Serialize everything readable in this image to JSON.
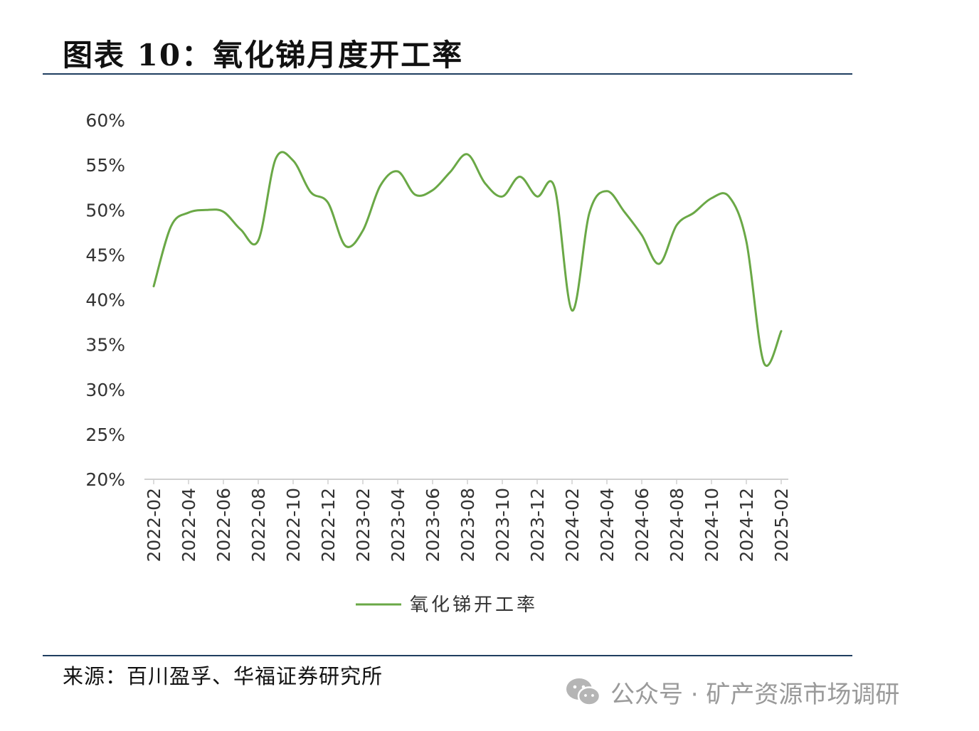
{
  "header": {
    "title": "图表 10：氧化锑月度开工率"
  },
  "footer": {
    "source": "来源：百川盈孚、华福证券研究所",
    "watermark": "公众号 · 矿产资源市场调研"
  },
  "colors": {
    "line": "#6aa846",
    "rule": "#1f3e60",
    "axis": "#d0d0d0",
    "text": "#333333"
  },
  "chart_data": {
    "type": "line",
    "title": "",
    "xlabel": "",
    "ylabel": "",
    "ylim": [
      0.2,
      0.6
    ],
    "y_ticks": [
      "20%",
      "25%",
      "30%",
      "35%",
      "40%",
      "45%",
      "50%",
      "55%",
      "60%"
    ],
    "x_tick_labels": [
      "2022-02",
      "2022-04",
      "2022-06",
      "2022-08",
      "2022-10",
      "2022-12",
      "2023-02",
      "2023-04",
      "2023-06",
      "2023-08",
      "2023-10",
      "2023-12",
      "2024-02",
      "2024-04",
      "2024-06",
      "2024-08",
      "2024-10",
      "2024-12",
      "2025-02"
    ],
    "grid": false,
    "legend_position": "bottom",
    "x": [
      "2022-02",
      "2022-03",
      "2022-04",
      "2022-05",
      "2022-06",
      "2022-07",
      "2022-08",
      "2022-09",
      "2022-10",
      "2022-11",
      "2022-12",
      "2023-01",
      "2023-02",
      "2023-03",
      "2023-04",
      "2023-05",
      "2023-06",
      "2023-07",
      "2023-08",
      "2023-09",
      "2023-10",
      "2023-11",
      "2023-12",
      "2024-01",
      "2024-02",
      "2024-03",
      "2024-04",
      "2024-05",
      "2024-06",
      "2024-07",
      "2024-08",
      "2024-09",
      "2024-10",
      "2024-11",
      "2024-12",
      "2025-01",
      "2025-02"
    ],
    "series": [
      {
        "name": "氧化锑开工率",
        "color": "#6aa846",
        "values": [
          0.415,
          0.482,
          0.497,
          0.5,
          0.498,
          0.478,
          0.466,
          0.557,
          0.555,
          0.52,
          0.508,
          0.46,
          0.477,
          0.527,
          0.543,
          0.517,
          0.522,
          0.542,
          0.562,
          0.53,
          0.515,
          0.537,
          0.515,
          0.525,
          0.388,
          0.497,
          0.521,
          0.498,
          0.472,
          0.44,
          0.483,
          0.497,
          0.513,
          0.515,
          0.465,
          0.33,
          0.365
        ]
      }
    ]
  }
}
